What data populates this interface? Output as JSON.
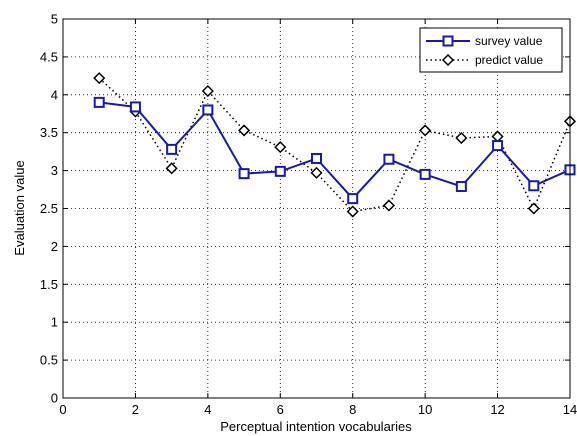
{
  "chart_data": {
    "type": "line",
    "title": "",
    "xlabel": "Perceptual intention vocabularies",
    "ylabel": "Evaluation value",
    "xlim": [
      0,
      14
    ],
    "ylim": [
      0,
      5
    ],
    "xticks": [
      0,
      2,
      4,
      6,
      8,
      10,
      12,
      14
    ],
    "yticks": [
      0,
      0.5,
      1,
      1.5,
      2,
      2.5,
      3,
      3.5,
      4,
      4.5,
      5
    ],
    "grid": true,
    "legend_position": "top-right",
    "x": [
      1,
      2,
      3,
      4,
      5,
      6,
      7,
      8,
      9,
      10,
      11,
      12,
      13,
      14
    ],
    "series": [
      {
        "name": "survey value",
        "color": "#1a1aa8",
        "line_style": "solid",
        "marker": "square",
        "values": [
          3.9,
          3.84,
          3.28,
          3.8,
          2.96,
          2.99,
          3.16,
          2.63,
          3.15,
          2.95,
          2.79,
          3.33,
          2.8,
          3.01
        ]
      },
      {
        "name": "predict value",
        "color": "#000000",
        "line_style": "dotted",
        "marker": "diamond",
        "values": [
          4.22,
          3.78,
          3.03,
          4.05,
          3.53,
          3.31,
          2.97,
          2.46,
          2.54,
          3.53,
          3.43,
          3.45,
          2.5,
          3.65
        ]
      }
    ]
  }
}
